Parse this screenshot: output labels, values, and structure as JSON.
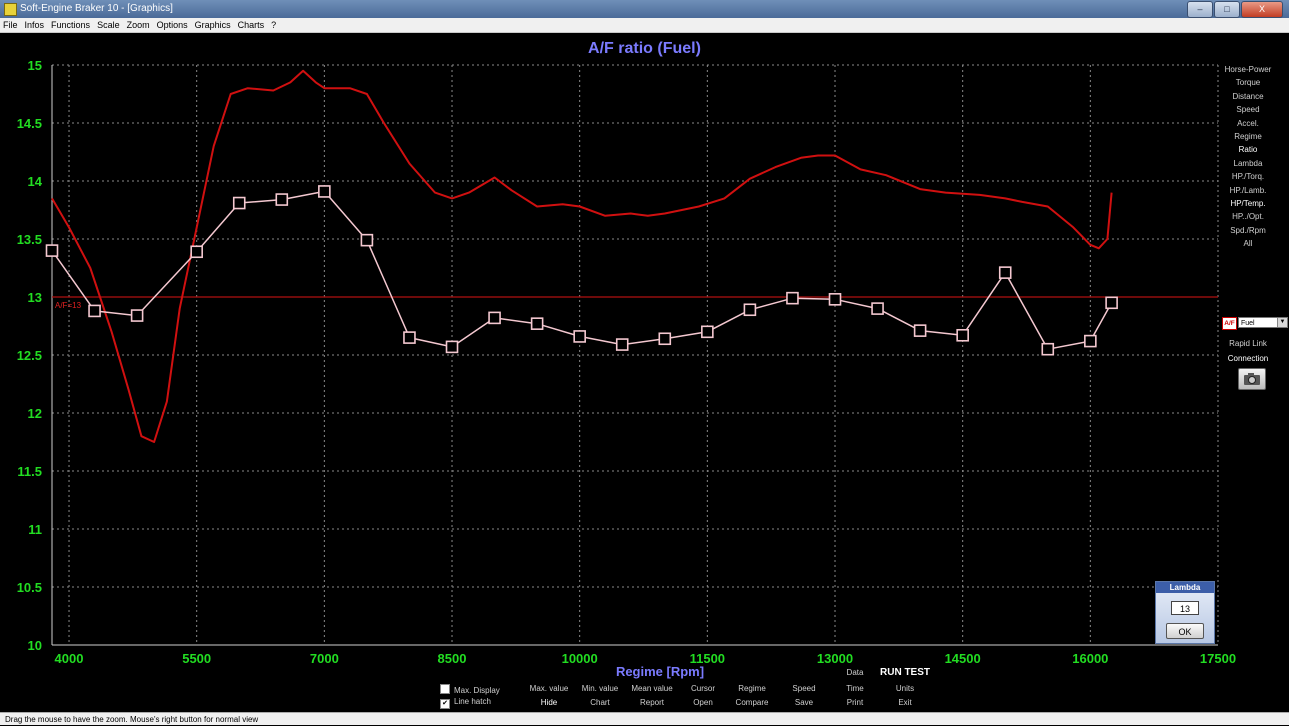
{
  "window": {
    "title": "Soft-Engine Braker 10 - [Graphics]",
    "controls": [
      "–",
      "□",
      "X"
    ]
  },
  "menu": [
    "File",
    "Infos",
    "Functions",
    "Scale",
    "Zoom",
    "Options",
    "Graphics",
    "Charts",
    "?"
  ],
  "side_menu": [
    "Horse-Power",
    "Torque",
    "Distance",
    "Speed",
    "Accel.",
    "Regime",
    "Ratio",
    "Lambda",
    "HP./Torq.",
    "HP./Lamb.",
    "HP/Temp.",
    "HP../Opt.",
    "Spd./Rpm",
    "All"
  ],
  "fuel_panel": {
    "icon_label": "A/F",
    "selected": "Fuel",
    "rapid_link": "Rapid Link",
    "connection": "Connection"
  },
  "lambda_panel": {
    "title": "Lambda",
    "value": "13",
    "ok": "OK"
  },
  "bottom": {
    "max_display": "Max. Display",
    "line_hatch": "Line hatch",
    "row1": [
      "Max. value",
      "Min. value",
      "Mean value",
      "Cursor",
      "Regime",
      "Speed",
      "Data"
    ],
    "row2": [
      "Hide",
      "Chart",
      "Report",
      "Open",
      "Compare",
      "Save",
      "Time",
      "Print",
      "Exit"
    ],
    "run_test": "RUN TEST",
    "units": "Units"
  },
  "status_text": "Drag the mouse to have the zoom. Mouse's right button for normal view",
  "colors": {
    "background": "#000000",
    "tick": "#22dd22",
    "title": "#7b7bff",
    "series_red": "#d01010",
    "series_pink": "#f4c8d0"
  },
  "chart_data": {
    "type": "line",
    "title": "A/F ratio (Fuel)",
    "xlabel": "Regime [Rpm]",
    "ylabel": "",
    "xlim": [
      3800,
      17500
    ],
    "ylim": [
      10,
      15
    ],
    "x_ticks": [
      4000,
      5500,
      7000,
      8500,
      10000,
      11500,
      13000,
      14500,
      16000,
      17500
    ],
    "y_ticks": [
      10,
      10.5,
      11,
      11.5,
      12,
      12.5,
      13,
      13.5,
      14,
      14.5,
      15
    ],
    "grid": true,
    "reference_line": {
      "value": 13,
      "label": "A/F=13"
    },
    "series": [
      {
        "color": "#d01010",
        "marker": "none",
        "x": [
          3800,
          4000,
          4250,
          4500,
          4700,
          4850,
          5000,
          5150,
          5300,
          5500,
          5700,
          5900,
          6100,
          6400,
          6600,
          6750,
          6900,
          7000,
          7300,
          7500,
          7700,
          8000,
          8300,
          8500,
          8700,
          9000,
          9200,
          9500,
          9800,
          10000,
          10300,
          10600,
          10800,
          11000,
          11400,
          11700,
          12000,
          12300,
          12600,
          12800,
          13000,
          13300,
          13600,
          14000,
          14300,
          14700,
          15000,
          15200,
          15500,
          15800,
          16000,
          16100,
          16200,
          16250
        ],
        "values": [
          13.85,
          13.6,
          13.25,
          12.7,
          12.2,
          11.8,
          11.75,
          12.1,
          12.9,
          13.6,
          14.3,
          14.75,
          14.8,
          14.78,
          14.85,
          14.95,
          14.85,
          14.8,
          14.8,
          14.75,
          14.5,
          14.15,
          13.9,
          13.85,
          13.9,
          14.03,
          13.92,
          13.78,
          13.8,
          13.78,
          13.7,
          13.72,
          13.7,
          13.72,
          13.78,
          13.85,
          14.02,
          14.12,
          14.2,
          14.22,
          14.22,
          14.1,
          14.05,
          13.93,
          13.9,
          13.88,
          13.85,
          13.82,
          13.78,
          13.6,
          13.45,
          13.42,
          13.5,
          13.9
        ]
      },
      {
        "color": "#f4c8d0",
        "marker": "square",
        "x": [
          3800,
          4300,
          4800,
          5500,
          6000,
          6500,
          7000,
          7500,
          8000,
          8500,
          9000,
          9500,
          10000,
          10500,
          11000,
          11500,
          12000,
          12500,
          13000,
          13500,
          14000,
          14500,
          15000,
          15500,
          16000,
          16250
        ],
        "values": [
          13.4,
          12.88,
          12.84,
          13.39,
          13.81,
          13.84,
          13.91,
          13.49,
          12.65,
          12.57,
          12.82,
          12.77,
          12.66,
          12.59,
          12.64,
          12.7,
          12.89,
          12.99,
          12.98,
          12.9,
          12.71,
          12.67,
          13.21,
          12.55,
          12.62,
          12.95
        ]
      }
    ]
  }
}
